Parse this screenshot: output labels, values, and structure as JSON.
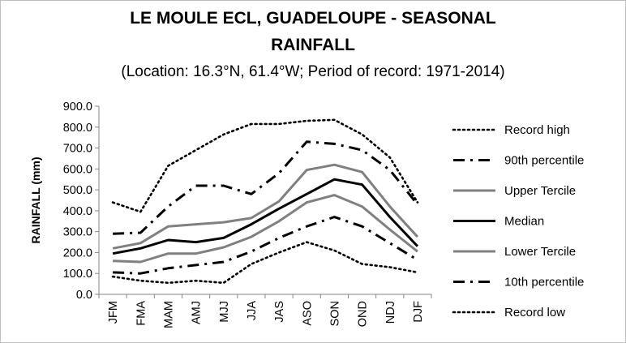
{
  "chart_data": {
    "type": "line",
    "title_lines": [
      "LE MOULE ECL, GUADELOUPE - SEASONAL",
      "RAINFALL"
    ],
    "subtitle": "(Location: 16.3°N, 61.4°W; Period of record: 1971-2014)",
    "xlabel": "",
    "ylabel": "RAINFALL (mm)",
    "ylim": [
      0,
      900
    ],
    "ytick_labels": [
      "0.0",
      "100.0",
      "200.0",
      "300.0",
      "400.0",
      "500.0",
      "600.0",
      "700.0",
      "800.0",
      "900.0"
    ],
    "grid": false,
    "legend_position": "right",
    "categories": [
      "JFM",
      "FMA",
      "MAM",
      "AMJ",
      "MJJ",
      "JJA",
      "JAS",
      "ASO",
      "SON",
      "OND",
      "NDJ",
      "DJF"
    ],
    "series": [
      {
        "name": "Record high",
        "style": "dotted",
        "color": "#000000",
        "values": [
          440,
          395,
          615,
          690,
          765,
          815,
          815,
          830,
          835,
          765,
          655,
          440
        ]
      },
      {
        "name": "90th percentile",
        "style": "dashdot",
        "color": "#000000",
        "values": [
          290,
          295,
          420,
          520,
          520,
          480,
          580,
          730,
          720,
          690,
          595,
          430
        ]
      },
      {
        "name": "Upper Tercile",
        "style": "solid",
        "color": "#808080",
        "values": [
          220,
          245,
          325,
          335,
          345,
          365,
          445,
          595,
          620,
          585,
          420,
          275
        ]
      },
      {
        "name": "Median",
        "style": "solid",
        "color": "#000000",
        "values": [
          195,
          220,
          260,
          250,
          270,
          335,
          410,
          480,
          550,
          525,
          370,
          230
        ]
      },
      {
        "name": "Lower Tercile",
        "style": "solid",
        "color": "#808080",
        "values": [
          160,
          155,
          195,
          195,
          225,
          275,
          350,
          440,
          475,
          420,
          310,
          205
        ]
      },
      {
        "name": "10th percentile",
        "style": "dashdot",
        "color": "#000000",
        "values": [
          105,
          100,
          125,
          140,
          155,
          205,
          270,
          325,
          370,
          325,
          245,
          165
        ]
      },
      {
        "name": "Record low",
        "style": "dotted",
        "color": "#000000",
        "values": [
          85,
          65,
          55,
          65,
          55,
          145,
          200,
          250,
          210,
          145,
          130,
          105
        ]
      }
    ]
  }
}
